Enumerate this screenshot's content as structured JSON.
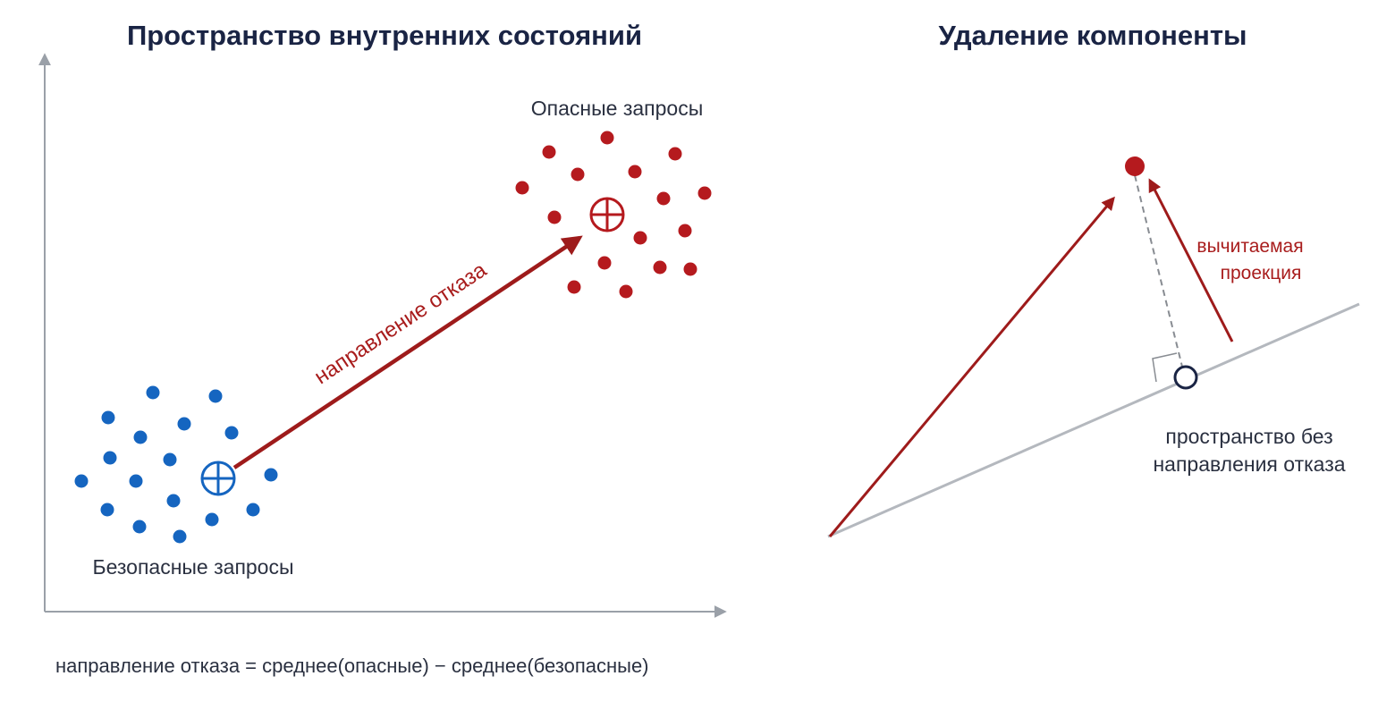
{
  "left_panel": {
    "title": "Пространство внутренних состояний",
    "harmful_label": "Опасные запросы",
    "harmless_label": "Безопасные запросы",
    "arrow_label": "направление отказа",
    "formula": "направление отказа = среднее(опасные) − среднее(безопасные)"
  },
  "right_panel": {
    "title": "Удаление компоненты",
    "projection_label_line1": "вычитаемая",
    "projection_label_line2": "проекция",
    "subspace_label_line1": "пространство без",
    "subspace_label_line2": "направления отказа"
  },
  "colors": {
    "harmful": "#b51a1e",
    "harmless": "#1565c0",
    "arrow": "#9e1b1b",
    "axis": "#9aa0a8",
    "title": "#1a2444"
  }
}
